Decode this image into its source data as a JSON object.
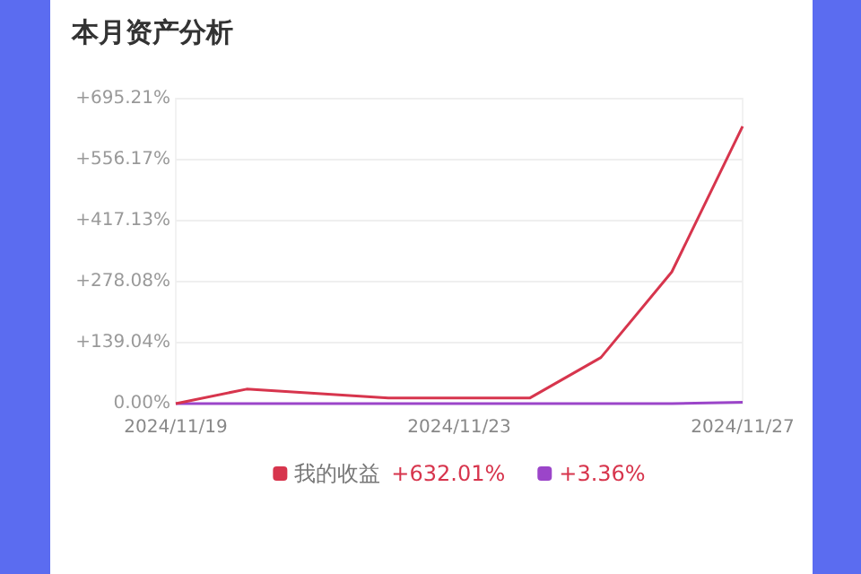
{
  "chart_data": {
    "type": "line",
    "title": "本月资产分析",
    "categories": [
      "2024/11/19",
      null,
      null,
      null,
      "2024/11/23",
      null,
      null,
      null,
      "2024/11/27"
    ],
    "series": [
      {
        "name": "我的收益",
        "color": "#d7354d",
        "values": [
          0,
          33,
          23,
          13,
          13,
          13,
          105,
          300,
          632
        ]
      },
      {
        "color": "#9b45c9",
        "values": [
          0,
          0,
          0,
          0,
          0,
          0,
          0,
          0,
          3
        ]
      }
    ],
    "ylim": [
      0,
      695.21
    ],
    "yticks": [
      {
        "value": 0,
        "label": "0.00%"
      },
      {
        "value": 139.04,
        "label": "+139.04%"
      },
      {
        "value": 278.08,
        "label": "+278.08%"
      },
      {
        "value": 417.13,
        "label": "+417.13%"
      },
      {
        "value": 556.17,
        "label": "+556.17%"
      },
      {
        "value": 695.21,
        "label": "+695.21%"
      }
    ],
    "grid": "y",
    "legend": "bottom",
    "annotations": [
      "+632.01%",
      "+3.36%"
    ]
  }
}
